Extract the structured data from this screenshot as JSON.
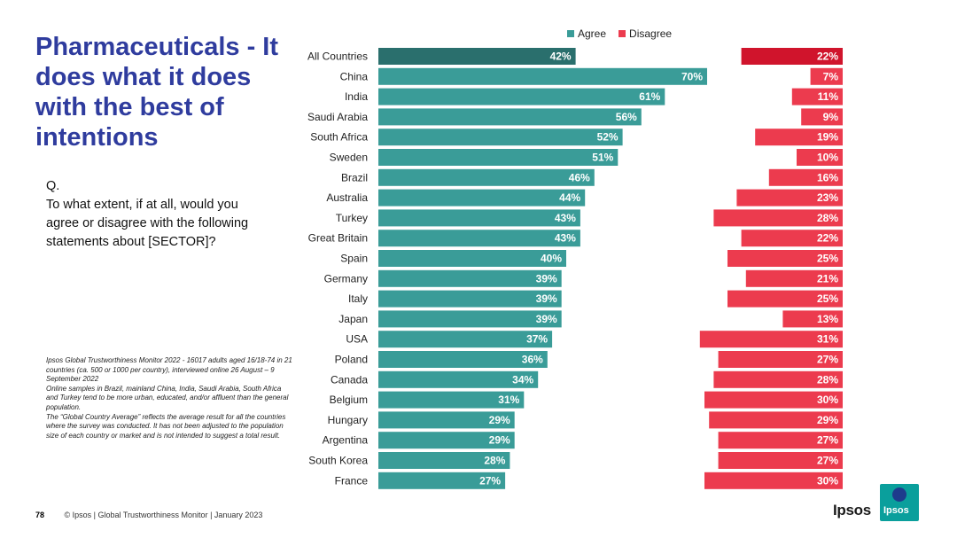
{
  "title": "Pharmaceuticals - It does what it does with the best of intentions",
  "question": {
    "label": "Q.",
    "text": "To what extent, if at all, would you agree or disagree with the following statements about [SECTOR]?"
  },
  "note": "Ipsos Global Trustworthiness Monitor 2022 - 16017 adults aged 16/18-74 in 21 countries (ca. 500 or 1000 per country), interviewed online 26 August – 9 September 2022\nOnline samples in Brazil, mainland China, India, Saudi Arabia, South Africa and Turkey tend to be more urban, educated, and/or affluent than the general population.\nThe “Global Country Average” reflects the average result for all the countries where the survey was conducted. It has not been adjusted to the population size of each country or market and is not intended to suggest a total result.",
  "footer": {
    "page_number": "78",
    "text": "© Ipsos | Global Trustworthiness Monitor | January 2023"
  },
  "logo": {
    "text": "Ipsos",
    "badge_text": "Ipsos"
  },
  "colors": {
    "agree": "#3a9c98",
    "agree_highlight": "#2a6f6d",
    "disagree": "#ec3b4e",
    "disagree_highlight": "#d0142c"
  },
  "chart_data": {
    "type": "bar",
    "orientation": "horizontal",
    "categories": [
      "All Countries",
      "China",
      "India",
      "Saudi Arabia",
      "South Africa",
      "Sweden",
      "Brazil",
      "Australia",
      "Turkey",
      "Great Britain",
      "Spain",
      "Germany",
      "Italy",
      "Japan",
      "USA",
      "Poland",
      "Canada",
      "Belgium",
      "Hungary",
      "Argentina",
      "South Korea",
      "France"
    ],
    "series": [
      {
        "name": "Agree",
        "values": [
          42,
          70,
          61,
          56,
          52,
          51,
          46,
          44,
          43,
          43,
          40,
          39,
          39,
          39,
          37,
          36,
          34,
          31,
          29,
          29,
          28,
          27
        ]
      },
      {
        "name": "Disagree",
        "values": [
          22,
          7,
          11,
          9,
          19,
          10,
          16,
          23,
          28,
          22,
          25,
          21,
          25,
          13,
          31,
          27,
          28,
          30,
          29,
          27,
          27,
          30
        ]
      }
    ],
    "data_labels": {
      "agree": [
        "42%",
        "70%",
        "61%",
        "56%",
        "52%",
        "51%",
        "46%",
        "44%",
        "43%",
        "43%",
        "40%",
        "39%",
        "39%",
        "39%",
        "37%",
        "36%",
        "34%",
        "31%",
        "29%",
        "29%",
        "28%",
        "27%"
      ],
      "disagree": [
        "22%",
        "7%",
        "11%",
        "9%",
        "19%",
        "10%",
        "16%",
        "23%",
        "28%",
        "22%",
        "25%",
        "21%",
        "25%",
        "13%",
        "31%",
        "27%",
        "28%",
        "30%",
        "29%",
        "27%",
        "27%",
        "30%"
      ]
    },
    "legend": [
      "Agree",
      "Disagree"
    ],
    "legend_position": "top"
  }
}
